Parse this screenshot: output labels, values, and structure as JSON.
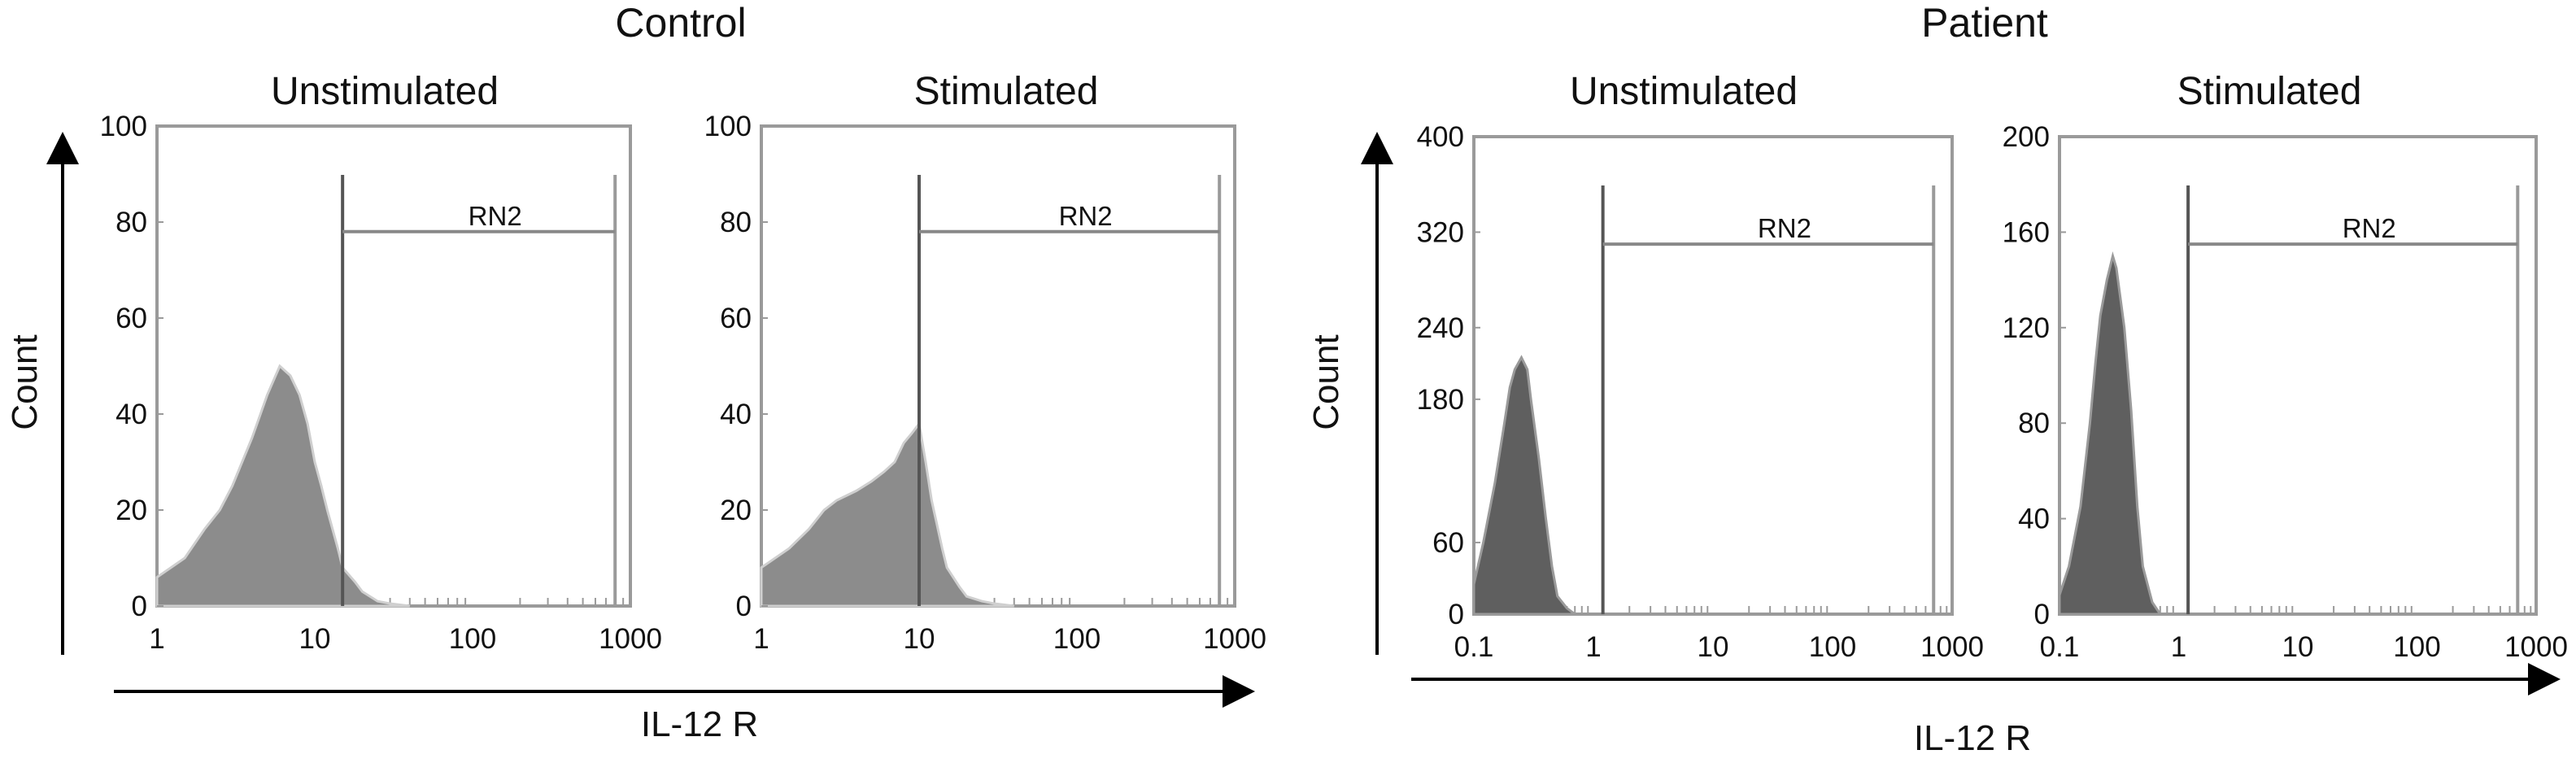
{
  "figure": {
    "groups": [
      {
        "title": "Control",
        "ylabel": "Count",
        "xlabel": "IL-12 R",
        "panels": [
          {
            "title": "Unstimulated",
            "gate_label": "RN2",
            "x_ticks": [
              "1",
              "10",
              "100",
              "1000"
            ],
            "y_ticks": [
              "0",
              "20",
              "40",
              "60",
              "80",
              "100"
            ]
          },
          {
            "title": "Stimulated",
            "gate_label": "RN2",
            "x_ticks": [
              "1",
              "10",
              "100",
              "1000"
            ],
            "y_ticks": [
              "0",
              "20",
              "40",
              "60",
              "80",
              "100"
            ]
          }
        ]
      },
      {
        "title": "Patient",
        "ylabel": "Count",
        "xlabel": "IL-12 R",
        "panels": [
          {
            "title": "Unstimulated",
            "gate_label": "RN2",
            "x_ticks": [
              "0.1",
              "1",
              "10",
              "100",
              "1000"
            ],
            "y_ticks": [
              "0",
              "60",
              "180",
              "240",
              "320",
              "400"
            ]
          },
          {
            "title": "Stimulated",
            "gate_label": "RN2",
            "x_ticks": [
              "0.1",
              "1",
              "10",
              "100",
              "1000"
            ],
            "y_ticks": [
              "0",
              "40",
              "80",
              "120",
              "160",
              "200"
            ]
          }
        ]
      }
    ]
  },
  "chart_data": [
    {
      "type": "area",
      "group": "Control",
      "title": "Unstimulated",
      "xlabel": "IL-12 R",
      "ylabel": "Count",
      "x_scale": "log",
      "xlim": [
        1,
        1000
      ],
      "ylim": [
        0,
        100
      ],
      "y_tick_values": [
        0,
        20,
        40,
        60,
        80,
        100
      ],
      "gate": {
        "label": "RN2",
        "from": 15,
        "to": 800,
        "level": 78
      },
      "histogram_x": [
        1,
        1.5,
        2,
        2.5,
        3,
        4,
        5,
        6,
        7,
        8,
        9,
        10,
        11,
        12,
        14,
        15,
        18,
        20,
        25,
        30,
        40
      ],
      "histogram_counts": [
        6,
        10,
        16,
        20,
        25,
        35,
        44,
        50,
        48,
        44,
        38,
        30,
        25,
        20,
        12,
        8,
        5,
        3,
        1,
        0.5,
        0
      ],
      "color": "#8c8c8c",
      "highlight_color": "#cfcfcf"
    },
    {
      "type": "area",
      "group": "Control",
      "title": "Stimulated",
      "xlabel": "IL-12 R",
      "ylabel": "Count",
      "x_scale": "log",
      "xlim": [
        1,
        1000
      ],
      "ylim": [
        0,
        100
      ],
      "y_tick_values": [
        0,
        20,
        40,
        60,
        80,
        100
      ],
      "gate": {
        "label": "RN2",
        "from": 10,
        "to": 800,
        "level": 78
      },
      "histogram_x": [
        1,
        1.5,
        2,
        2.5,
        3,
        4,
        5,
        6,
        7,
        8,
        9,
        10,
        11,
        12,
        14,
        15,
        18,
        20,
        25,
        30,
        40
      ],
      "histogram_counts": [
        8,
        12,
        16,
        20,
        22,
        24,
        26,
        28,
        30,
        34,
        36,
        38,
        30,
        22,
        12,
        8,
        4,
        2,
        1,
        0.5,
        0
      ],
      "color": "#8c8c8c",
      "highlight_color": "#cfcfcf"
    },
    {
      "type": "area",
      "group": "Patient",
      "title": "Unstimulated",
      "xlabel": "IL-12 R",
      "ylabel": "Count",
      "x_scale": "log",
      "xlim": [
        0.1,
        1000
      ],
      "ylim": [
        0,
        400
      ],
      "y_tick_values": [
        0,
        60,
        180,
        240,
        320,
        400
      ],
      "gate": {
        "label": "RN2",
        "from": 1.2,
        "to": 700,
        "level": 310
      },
      "histogram_x": [
        0.1,
        0.12,
        0.15,
        0.18,
        0.2,
        0.22,
        0.25,
        0.28,
        0.3,
        0.35,
        0.4,
        0.45,
        0.5,
        0.6,
        0.7
      ],
      "histogram_counts": [
        25,
        60,
        110,
        160,
        190,
        205,
        215,
        205,
        180,
        130,
        80,
        40,
        15,
        5,
        0
      ],
      "color": "#5f5f5f",
      "highlight_color": "#9a9a9a"
    },
    {
      "type": "area",
      "group": "Patient",
      "title": "Stimulated",
      "xlabel": "IL-12 R",
      "ylabel": "Count",
      "x_scale": "log",
      "xlim": [
        0.1,
        1000
      ],
      "ylim": [
        0,
        200
      ],
      "y_tick_values": [
        0,
        40,
        80,
        120,
        160,
        200
      ],
      "gate": {
        "label": "RN2",
        "from": 1.2,
        "to": 700,
        "level": 155
      },
      "histogram_x": [
        0.1,
        0.12,
        0.15,
        0.18,
        0.2,
        0.22,
        0.25,
        0.28,
        0.3,
        0.35,
        0.4,
        0.45,
        0.5,
        0.6,
        0.7
      ],
      "histogram_counts": [
        8,
        20,
        45,
        80,
        105,
        125,
        140,
        150,
        145,
        120,
        85,
        45,
        20,
        5,
        0
      ],
      "color": "#5f5f5f",
      "highlight_color": "#9a9a9a"
    }
  ]
}
